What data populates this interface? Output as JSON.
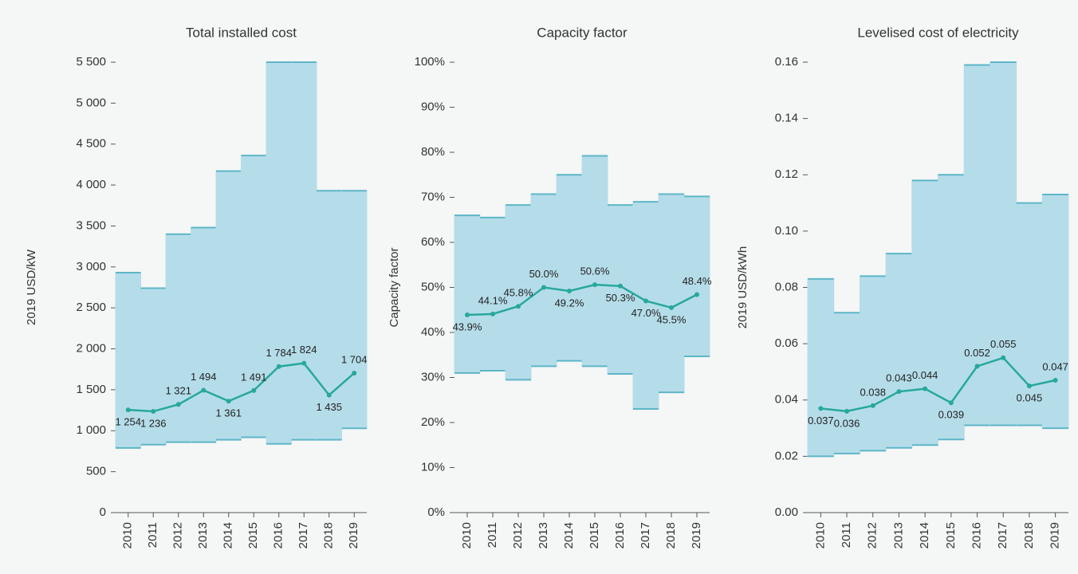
{
  "chart_data": [
    {
      "type": "range-line",
      "title": "Total installed cost",
      "y_label": "2019 USD/kW",
      "categories": [
        "2010",
        "2011",
        "2012",
        "2013",
        "2014",
        "2015",
        "2016",
        "2017",
        "2018",
        "2019"
      ],
      "values": [
        1254,
        1236,
        1321,
        1494,
        1361,
        1491,
        1784,
        1824,
        1435,
        1704
      ],
      "value_labels": [
        "1 254",
        "1 236",
        "1 321",
        "1 494",
        "1 361",
        "1 491",
        "1 784",
        "1 824",
        "1 435",
        "1 704"
      ],
      "low": [
        790,
        830,
        860,
        860,
        890,
        920,
        840,
        890,
        890,
        1030
      ],
      "high": [
        2930,
        2740,
        3400,
        3480,
        4170,
        4360,
        5500,
        5500,
        3930,
        3930
      ],
      "band_color": "#b5dde9",
      "edge_color": "#5db6c8",
      "line_color": "#27a89c",
      "ylim": [
        0,
        5500
      ],
      "yticks": [
        0,
        500,
        {
          "value": 1000,
          "label": "1 000"
        },
        {
          "value": 1500,
          "label": "1 500"
        },
        {
          "value": 2000,
          "label": "2 000"
        },
        {
          "value": 2500,
          "label": "2 500"
        },
        {
          "value": 3000,
          "label": "3 000"
        },
        {
          "value": 3500,
          "label": "3 500"
        },
        {
          "value": 4000,
          "label": "4 000"
        },
        {
          "value": 4500,
          "label": "4 500"
        },
        {
          "value": 5000,
          "label": "5 000"
        },
        {
          "value": 5500,
          "label": "5 500"
        }
      ]
    },
    {
      "type": "range-line",
      "title": "Capacity factor",
      "y_label": "Capacity factor",
      "categories": [
        "2010",
        "2011",
        "2012",
        "2013",
        "2014",
        "2015",
        "2016",
        "2017",
        "2018",
        "2019"
      ],
      "values": [
        43.9,
        44.1,
        45.8,
        50.0,
        49.2,
        50.6,
        50.3,
        47.0,
        45.5,
        48.4
      ],
      "value_labels": [
        "43.9%",
        "44.1%",
        "45.8%",
        "50.0%",
        "49.2%",
        "50.6%",
        "50.3%",
        "47.0%",
        "45.5%",
        "48.4%"
      ],
      "low": [
        31,
        31.5,
        29.5,
        32.5,
        33.7,
        32.5,
        30.8,
        23,
        26.7,
        34.7
      ],
      "high": [
        66,
        65.5,
        68.3,
        70.7,
        75,
        79.2,
        68.3,
        69,
        70.7,
        70.2
      ],
      "band_color": "#b5dde9",
      "edge_color": "#5db6c8",
      "line_color": "#27a89c",
      "ylim": [
        0,
        100
      ],
      "yticks": [
        {
          "value": 0,
          "label": "0%"
        },
        {
          "value": 10,
          "label": "10%"
        },
        {
          "value": 20,
          "label": "20%"
        },
        {
          "value": 30,
          "label": "30%"
        },
        {
          "value": 40,
          "label": "40%"
        },
        {
          "value": 50,
          "label": "50%"
        },
        {
          "value": 60,
          "label": "60%"
        },
        {
          "value": 70,
          "label": "70%"
        },
        {
          "value": 80,
          "label": "80%"
        },
        {
          "value": 90,
          "label": "90%"
        },
        {
          "value": 100,
          "label": "100%"
        }
      ]
    },
    {
      "type": "range-line",
      "title": "Levelised cost of electricity",
      "y_label": "2019 USD/kWh",
      "categories": [
        "2010",
        "2011",
        "2012",
        "2013",
        "2014",
        "2015",
        "2016",
        "2017",
        "2018",
        "2019"
      ],
      "values": [
        0.037,
        0.036,
        0.038,
        0.043,
        0.044,
        0.039,
        0.052,
        0.055,
        0.045,
        0.047
      ],
      "low": [
        0.02,
        0.021,
        0.022,
        0.023,
        0.024,
        0.026,
        0.031,
        0.031,
        0.031,
        0.03
      ],
      "high": [
        0.083,
        0.071,
        0.084,
        0.092,
        0.118,
        0.12,
        0.159,
        0.16,
        0.11,
        0.113
      ],
      "band_color": "#b5dde9",
      "edge_color": "#5db6c8",
      "line_color": "#27a89c",
      "ylim": [
        0,
        0.16
      ],
      "yticks": [
        {
          "value": 0,
          "label": "0.00"
        },
        0.02,
        0.04,
        0.06,
        0.08,
        {
          "value": 0.1,
          "label": "0.10"
        },
        0.12,
        0.14,
        0.16
      ]
    }
  ]
}
